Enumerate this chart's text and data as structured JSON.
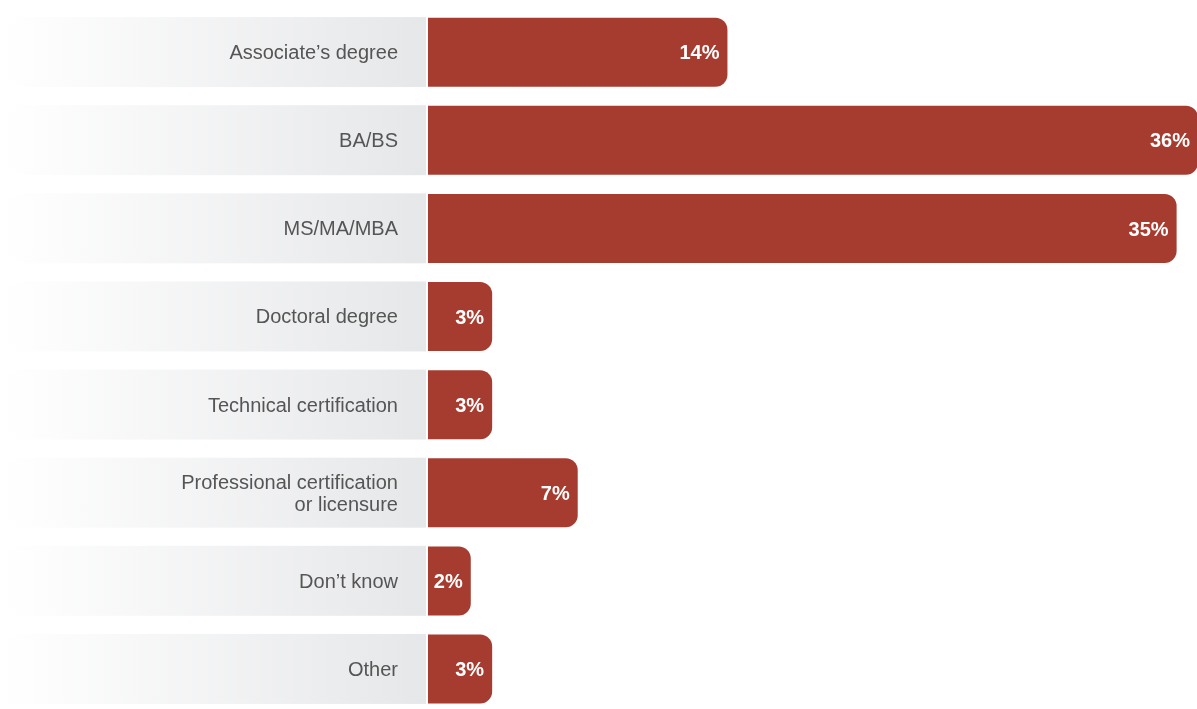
{
  "chart_data": {
    "type": "bar",
    "orientation": "horizontal",
    "categories": [
      "Associate’s degree",
      "BA/BS",
      "MS/MA/MBA",
      "Doctoral degree",
      "Technical certification",
      "Professional certification or licensure",
      "Don’t know",
      "Other"
    ],
    "values": [
      14,
      36,
      35,
      3,
      3,
      7,
      2,
      3
    ],
    "value_labels": [
      "14%",
      "36%",
      "35%",
      "3%",
      "3%",
      "7%",
      "2%",
      "3%"
    ],
    "color": "#a63c30",
    "grid": false,
    "legend": false
  }
}
